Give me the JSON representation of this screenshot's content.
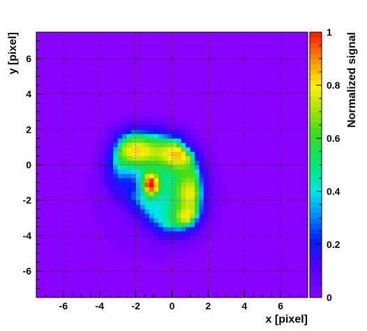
{
  "chart_data": {
    "type": "heatmap",
    "title": "",
    "xlabel": "x [pixel]",
    "ylabel": "y [pixel]",
    "zlabel": "Normalized signal",
    "xlim": [
      -7.5,
      7.5
    ],
    "ylim": [
      -7.5,
      7.5
    ],
    "zlim": [
      0,
      1
    ],
    "x_ticks": [
      -6,
      -4,
      -2,
      0,
      2,
      4,
      6
    ],
    "y_ticks": [
      -6,
      -4,
      -2,
      0,
      2,
      4,
      6
    ],
    "z_ticks": [
      0,
      0.2,
      0.4,
      0.6,
      0.8,
      1
    ],
    "x_tick_labels": [
      "-6",
      "-4",
      "-2",
      "0",
      "2",
      "4",
      "6"
    ],
    "y_tick_labels": [
      "-6",
      "-4",
      "-2",
      "0",
      "2",
      "4",
      "6"
    ],
    "z_tick_labels": [
      "0",
      "0.2",
      "0.4",
      "0.6",
      "0.8",
      "1"
    ],
    "grid": true,
    "colorbar": "right",
    "background_level": 0.0,
    "bins_per_unit": 4,
    "features": [
      {
        "kind": "shoulder",
        "x": -1.0,
        "y": -1.8,
        "sx": 3.0,
        "sy": 3.0,
        "amp": 0.04
      },
      {
        "kind": "bright-top-left",
        "x": -2.0,
        "y": 0.8,
        "sx": 0.9,
        "sy": 0.6,
        "amp": 0.45
      },
      {
        "kind": "bright-top-right",
        "x": 0.3,
        "y": 0.6,
        "sx": 0.8,
        "sy": 0.6,
        "amp": 0.45
      },
      {
        "kind": "bright-right",
        "x": 1.0,
        "y": -1.6,
        "sx": 0.7,
        "sy": 0.9,
        "amp": 0.4
      },
      {
        "kind": "bright-bottom",
        "x": 0.8,
        "y": -3.0,
        "sx": 0.6,
        "sy": 0.4,
        "amp": 0.3
      },
      {
        "kind": "peak",
        "x": -1.2,
        "y": -1.1,
        "sx": 0.35,
        "sy": 0.45,
        "amp": 0.7
      }
    ],
    "body": {
      "boundary_polygon": [
        [
          -3.5,
          1.1
        ],
        [
          -3.1,
          1.9
        ],
        [
          -2.2,
          2.3
        ],
        [
          -0.8,
          2.2
        ],
        [
          0.6,
          1.8
        ],
        [
          1.5,
          0.8
        ],
        [
          1.9,
          -0.4
        ],
        [
          2.0,
          -1.6
        ],
        [
          1.9,
          -2.8
        ],
        [
          1.4,
          -3.7
        ],
        [
          0.6,
          -4.1
        ],
        [
          -0.6,
          -4.1
        ],
        [
          -1.4,
          -3.5
        ],
        [
          -2.2,
          -2.6
        ],
        [
          -3.1,
          -1.8
        ],
        [
          -3.6,
          -0.9
        ],
        [
          -3.7,
          0.1
        ]
      ],
      "interior_level": 0.35
    },
    "hole": {
      "x": -2.4,
      "y": -1.2,
      "sx": 0.7,
      "sy": 0.55,
      "amp": 0.2
    }
  }
}
